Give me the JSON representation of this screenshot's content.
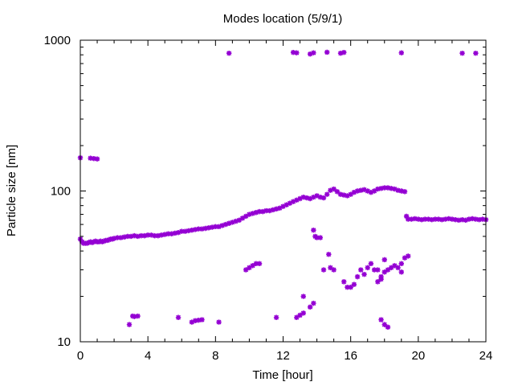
{
  "chart_data": {
    "type": "scatter",
    "title": "Modes location (5/9/1)",
    "xlabel": "Time [hour]",
    "ylabel": "Particle size [nm]",
    "xlim": [
      0,
      24
    ],
    "ylim": [
      10,
      1000
    ],
    "yscale": "log",
    "x_ticks": [
      0,
      4,
      8,
      12,
      16,
      20,
      24
    ],
    "y_ticks": [
      10,
      100,
      1000
    ],
    "x_tick_labels": [
      "0",
      "4",
      "8",
      "12",
      "16",
      "20",
      "24"
    ],
    "y_tick_labels": [
      "10",
      "100",
      "1000"
    ],
    "marker_color": "#9400d3",
    "marker": "asterisk",
    "grid": false,
    "legend": "none",
    "series": [
      {
        "points": [
          [
            0.0,
            48
          ],
          [
            0.1,
            46
          ],
          [
            0.2,
            45
          ],
          [
            0.3,
            45
          ],
          [
            0.4,
            45
          ],
          [
            0.5,
            45.5
          ],
          [
            0.6,
            46
          ],
          [
            0.7,
            45.5
          ],
          [
            0.8,
            46
          ],
          [
            0.9,
            46.5
          ],
          [
            1.0,
            46
          ],
          [
            1.1,
            46
          ],
          [
            1.2,
            46.5
          ],
          [
            1.3,
            46
          ],
          [
            1.4,
            46.5
          ],
          [
            1.5,
            47
          ],
          [
            1.6,
            47
          ],
          [
            1.7,
            47.5
          ],
          [
            1.8,
            48
          ],
          [
            1.9,
            48
          ],
          [
            2.0,
            48.5
          ],
          [
            2.2,
            49
          ],
          [
            2.4,
            49
          ],
          [
            2.6,
            49.5
          ],
          [
            2.8,
            50
          ],
          [
            3.0,
            50
          ],
          [
            3.2,
            50.5
          ],
          [
            3.4,
            50
          ],
          [
            3.6,
            50.5
          ],
          [
            3.8,
            50.5
          ],
          [
            4.0,
            51
          ],
          [
            4.2,
            51
          ],
          [
            4.4,
            50.5
          ],
          [
            4.6,
            50.5
          ],
          [
            4.8,
            51
          ],
          [
            5.0,
            51.5
          ],
          [
            5.2,
            52
          ],
          [
            5.4,
            52
          ],
          [
            5.6,
            52.5
          ],
          [
            5.8,
            53
          ],
          [
            6.0,
            54
          ],
          [
            6.2,
            54
          ],
          [
            6.4,
            54.5
          ],
          [
            6.6,
            55
          ],
          [
            6.8,
            55.5
          ],
          [
            7.0,
            56
          ],
          [
            7.2,
            56
          ],
          [
            7.4,
            56.5
          ],
          [
            7.6,
            57
          ],
          [
            7.8,
            57.5
          ],
          [
            8.0,
            58
          ],
          [
            8.2,
            58
          ],
          [
            8.4,
            59
          ],
          [
            8.6,
            60
          ],
          [
            8.8,
            61
          ],
          [
            9.0,
            62
          ],
          [
            9.2,
            63
          ],
          [
            9.4,
            64
          ],
          [
            9.6,
            66
          ],
          [
            9.8,
            68
          ],
          [
            10.0,
            70
          ],
          [
            10.2,
            71
          ],
          [
            10.4,
            72
          ],
          [
            10.6,
            73
          ],
          [
            10.8,
            73
          ],
          [
            11.0,
            74
          ],
          [
            11.2,
            74
          ],
          [
            11.4,
            75
          ],
          [
            11.6,
            76
          ],
          [
            11.8,
            77
          ],
          [
            12.0,
            79
          ],
          [
            12.2,
            81
          ],
          [
            12.4,
            83
          ],
          [
            12.6,
            85
          ],
          [
            12.8,
            87
          ],
          [
            13.0,
            89
          ],
          [
            13.2,
            91
          ],
          [
            13.4,
            90
          ],
          [
            13.6,
            89
          ],
          [
            13.8,
            91
          ],
          [
            14.0,
            93
          ],
          [
            14.2,
            91
          ],
          [
            14.4,
            90
          ],
          [
            14.6,
            95
          ],
          [
            14.8,
            101
          ],
          [
            15.0,
            103
          ],
          [
            15.2,
            99
          ],
          [
            15.4,
            95
          ],
          [
            15.6,
            94
          ],
          [
            15.8,
            93
          ],
          [
            16.0,
            95
          ],
          [
            16.2,
            98
          ],
          [
            16.4,
            100
          ],
          [
            16.6,
            101
          ],
          [
            16.8,
            102
          ],
          [
            17.0,
            100
          ],
          [
            17.2,
            98
          ],
          [
            17.4,
            100
          ],
          [
            17.6,
            103
          ],
          [
            17.8,
            104
          ],
          [
            18.0,
            105
          ],
          [
            18.2,
            105
          ],
          [
            18.4,
            104
          ],
          [
            18.6,
            103
          ],
          [
            18.8,
            101
          ],
          [
            19.0,
            100
          ],
          [
            19.2,
            99
          ],
          [
            19.3,
            68
          ],
          [
            19.4,
            65
          ],
          [
            19.6,
            65
          ],
          [
            19.8,
            65.5
          ],
          [
            20.0,
            65
          ],
          [
            20.2,
            64.5
          ],
          [
            20.4,
            65
          ],
          [
            20.6,
            65
          ],
          [
            20.8,
            64.5
          ],
          [
            21.0,
            65
          ],
          [
            21.2,
            65
          ],
          [
            21.4,
            64.5
          ],
          [
            21.6,
            65
          ],
          [
            21.8,
            65.5
          ],
          [
            22.0,
            65
          ],
          [
            22.2,
            64.5
          ],
          [
            22.4,
            64
          ],
          [
            22.6,
            64.5
          ],
          [
            22.8,
            64
          ],
          [
            23.0,
            65
          ],
          [
            23.2,
            65.5
          ],
          [
            23.4,
            65
          ],
          [
            23.6,
            64.5
          ],
          [
            23.8,
            65
          ],
          [
            24.0,
            64.5
          ],
          [
            0.0,
            166
          ],
          [
            0.6,
            165
          ],
          [
            0.8,
            164
          ],
          [
            1.0,
            163
          ],
          [
            8.8,
            820
          ],
          [
            12.6,
            830
          ],
          [
            12.8,
            825
          ],
          [
            13.6,
            810
          ],
          [
            13.8,
            825
          ],
          [
            14.6,
            832
          ],
          [
            15.4,
            820
          ],
          [
            15.6,
            830
          ],
          [
            19.0,
            825
          ],
          [
            22.6,
            820
          ],
          [
            23.4,
            820
          ],
          [
            9.8,
            30
          ],
          [
            10.0,
            31
          ],
          [
            10.2,
            32
          ],
          [
            10.4,
            33
          ],
          [
            10.6,
            33
          ],
          [
            13.8,
            55
          ],
          [
            13.9,
            50
          ],
          [
            14.0,
            49
          ],
          [
            14.2,
            49
          ],
          [
            14.4,
            30
          ],
          [
            14.7,
            38
          ],
          [
            14.8,
            31
          ],
          [
            15.0,
            30
          ],
          [
            15.6,
            25
          ],
          [
            15.8,
            23
          ],
          [
            16.0,
            23
          ],
          [
            16.2,
            24
          ],
          [
            16.4,
            27
          ],
          [
            16.6,
            30
          ],
          [
            16.8,
            28
          ],
          [
            17.0,
            31
          ],
          [
            17.2,
            33
          ],
          [
            17.4,
            30
          ],
          [
            17.6,
            25
          ],
          [
            17.8,
            26
          ],
          [
            18.0,
            29
          ],
          [
            18.2,
            30
          ],
          [
            18.4,
            31
          ],
          [
            18.6,
            32
          ],
          [
            18.8,
            31
          ],
          [
            19.0,
            33
          ],
          [
            19.2,
            36
          ],
          [
            19.4,
            37
          ],
          [
            17.6,
            30
          ],
          [
            17.8,
            27
          ],
          [
            18.0,
            35
          ],
          [
            19.0,
            29
          ],
          [
            13.2,
            20
          ],
          [
            13.6,
            17
          ],
          [
            13.8,
            18
          ],
          [
            12.8,
            14.5
          ],
          [
            13.0,
            15
          ],
          [
            13.2,
            15.5
          ],
          [
            17.8,
            14
          ],
          [
            18.0,
            13
          ],
          [
            18.2,
            12.5
          ],
          [
            2.9,
            13
          ],
          [
            3.1,
            14.8
          ],
          [
            3.2,
            14.7
          ],
          [
            3.4,
            14.8
          ],
          [
            5.8,
            14.5
          ],
          [
            6.6,
            13.5
          ],
          [
            6.8,
            13.8
          ],
          [
            7.0,
            13.9
          ],
          [
            7.2,
            14
          ],
          [
            8.2,
            13.5
          ],
          [
            11.6,
            14.5
          ]
        ]
      }
    ]
  }
}
